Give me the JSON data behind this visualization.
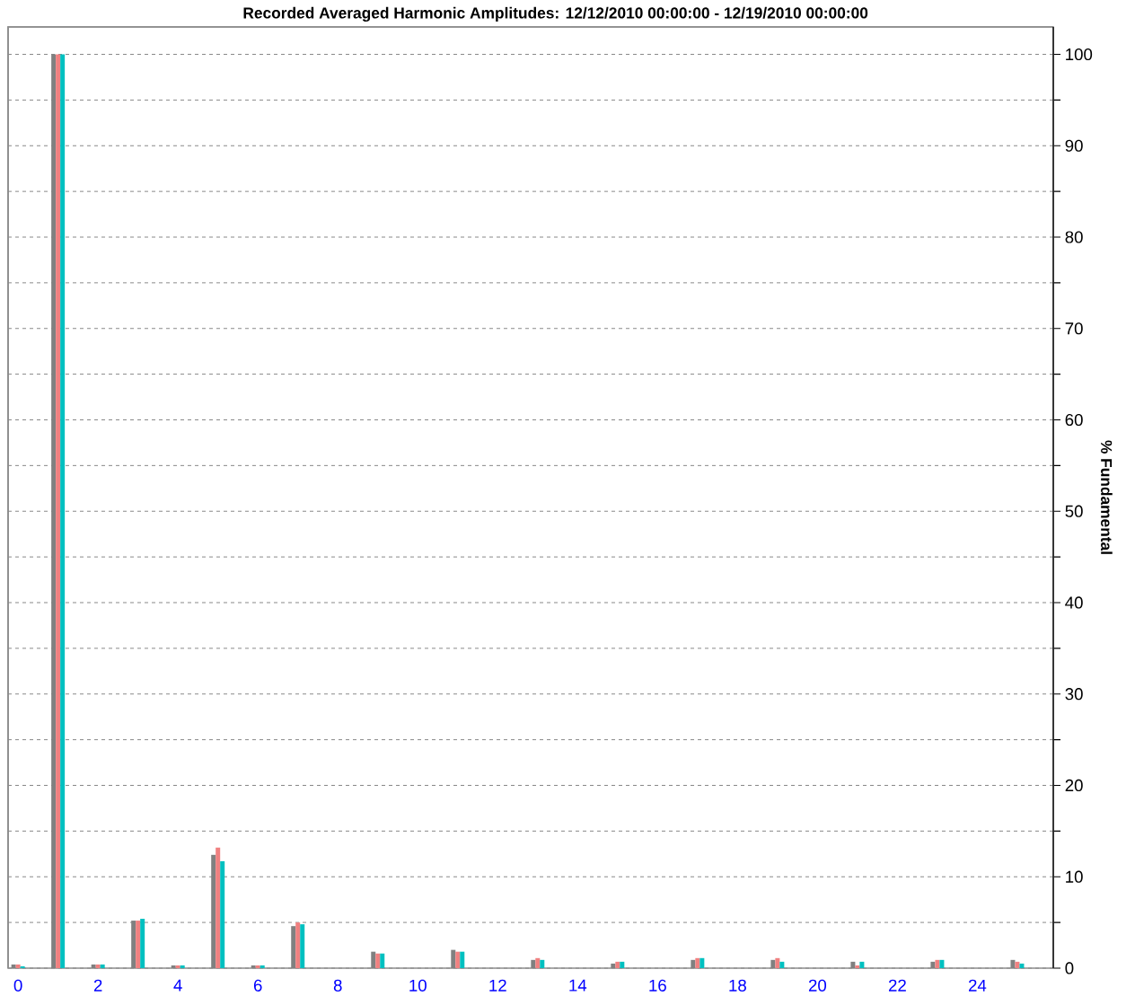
{
  "chart_data": {
    "type": "bar",
    "title": "Recorded Averaged Harmonic Amplitudes: 12/12/2010 00:00:00 - 12/19/2010 00:00:00",
    "ylabel": "% Fundamental",
    "x": [
      0,
      1,
      2,
      3,
      4,
      5,
      6,
      7,
      8,
      9,
      10,
      11,
      12,
      13,
      14,
      15,
      16,
      17,
      18,
      19,
      20,
      21,
      22,
      23,
      24,
      25
    ],
    "series": [
      {
        "color": "#808080",
        "values": [
          0.4,
          100,
          0.4,
          5.2,
          0.3,
          12.4,
          0.3,
          4.6,
          null,
          1.8,
          null,
          2.0,
          null,
          0.9,
          null,
          0.5,
          null,
          0.9,
          null,
          0.9,
          null,
          0.7,
          null,
          0.7,
          null,
          0.9
        ]
      },
      {
        "color": "#f08080",
        "values": [
          0.4,
          100,
          0.4,
          5.2,
          0.3,
          13.2,
          0.3,
          5.0,
          null,
          1.6,
          null,
          1.8,
          null,
          1.1,
          null,
          0.7,
          null,
          1.1,
          null,
          1.1,
          null,
          0.3,
          null,
          0.9,
          null,
          0.7
        ]
      },
      {
        "color": "#00c0c0",
        "values": [
          0.2,
          100,
          0.4,
          5.4,
          0.3,
          11.7,
          0.3,
          4.8,
          null,
          1.6,
          null,
          1.8,
          null,
          0.9,
          null,
          0.7,
          null,
          1.1,
          null,
          0.7,
          null,
          0.7,
          null,
          0.9,
          null,
          0.5
        ]
      }
    ],
    "xlim": [
      -0.25,
      25.9
    ],
    "xticks": [
      0,
      2,
      4,
      6,
      8,
      10,
      12,
      14,
      16,
      18,
      20,
      22,
      24
    ],
    "ylim": [
      0,
      103
    ],
    "yticks": [
      0,
      {
        "value": 5,
        "label": null
      },
      10,
      {
        "value": 15,
        "label": null
      },
      20,
      {
        "value": 25,
        "label": null
      },
      30,
      {
        "value": 35,
        "label": null
      },
      40,
      {
        "value": 45,
        "label": null
      },
      50,
      {
        "value": 55,
        "label": null
      },
      60,
      {
        "value": 65,
        "label": null
      },
      70,
      {
        "value": 75,
        "label": null
      },
      80,
      {
        "value": 85,
        "label": null
      },
      90,
      {
        "value": 95,
        "label": null
      },
      100
    ],
    "grid": "y"
  }
}
